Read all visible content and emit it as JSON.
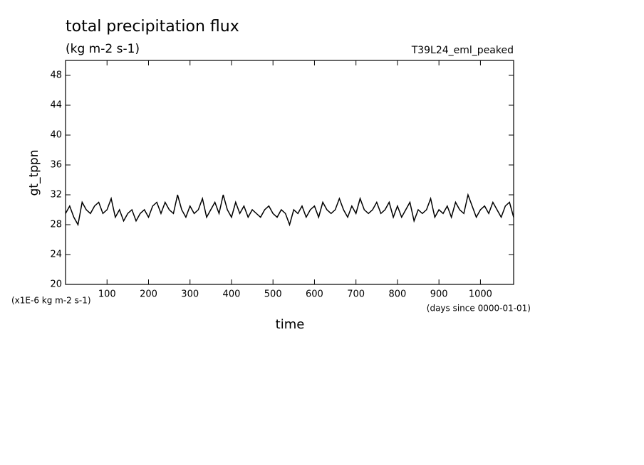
{
  "chart_data": {
    "type": "line",
    "title": "total precipitation flux",
    "subtitle": "(kg m-2 s-1)",
    "run_label": "T39L24_eml_peaked",
    "y_label": "gt_tppn",
    "x_label": "time",
    "y_unit_note": "(x1E-6 kg m-2 s-1)",
    "x_unit_note": "(days since 0000-01-01)",
    "xlim": [
      0,
      1080
    ],
    "ylim": [
      20,
      50
    ],
    "xticks": [
      100,
      200,
      300,
      400,
      500,
      600,
      700,
      800,
      900,
      1000
    ],
    "yticks": [
      20,
      24,
      28,
      32,
      36,
      40,
      44,
      48
    ],
    "x": [
      0,
      10,
      20,
      30,
      40,
      50,
      60,
      70,
      80,
      90,
      100,
      110,
      120,
      130,
      140,
      150,
      160,
      170,
      180,
      190,
      200,
      210,
      220,
      230,
      240,
      250,
      260,
      270,
      280,
      290,
      300,
      310,
      320,
      330,
      340,
      350,
      360,
      370,
      380,
      390,
      400,
      410,
      420,
      430,
      440,
      450,
      460,
      470,
      480,
      490,
      500,
      510,
      520,
      530,
      540,
      550,
      560,
      570,
      580,
      590,
      600,
      610,
      620,
      630,
      640,
      650,
      660,
      670,
      680,
      690,
      700,
      710,
      720,
      730,
      740,
      750,
      760,
      770,
      780,
      790,
      800,
      810,
      820,
      830,
      840,
      850,
      860,
      870,
      880,
      890,
      900,
      910,
      920,
      930,
      940,
      950,
      960,
      970,
      980,
      990,
      1000,
      1010,
      1020,
      1030,
      1040,
      1050,
      1060,
      1070,
      1080
    ],
    "series": [
      {
        "color": "#000000",
        "values": [
          29.5,
          30.5,
          29,
          28,
          31,
          30,
          29.5,
          30.5,
          31,
          29.5,
          30,
          31.5,
          29,
          30,
          28.5,
          29.5,
          30,
          28.5,
          29.5,
          30,
          29,
          30.5,
          31,
          29.5,
          31,
          30,
          29.5,
          32,
          30,
          29,
          30.5,
          29.5,
          30,
          31.5,
          29,
          30,
          31,
          29.5,
          32,
          30,
          29,
          31,
          29.5,
          30.5,
          29,
          30,
          29.5,
          29,
          30,
          30.5,
          29.5,
          29,
          30,
          29.5,
          28,
          30,
          29.5,
          30.5,
          29,
          30,
          30.5,
          29,
          31,
          30,
          29.5,
          30,
          31.5,
          30,
          29,
          30.5,
          29.5,
          31.5,
          30,
          29.5,
          30,
          31,
          29.5,
          30,
          31,
          29,
          30.5,
          29,
          30,
          31,
          28.5,
          30,
          29.5,
          30,
          31.5,
          29,
          30,
          29.5,
          30.5,
          29,
          31,
          30,
          29.5,
          32,
          30.5,
          29,
          30,
          30.5,
          29.5,
          31,
          30,
          29,
          30.5,
          31,
          29
        ]
      }
    ]
  }
}
